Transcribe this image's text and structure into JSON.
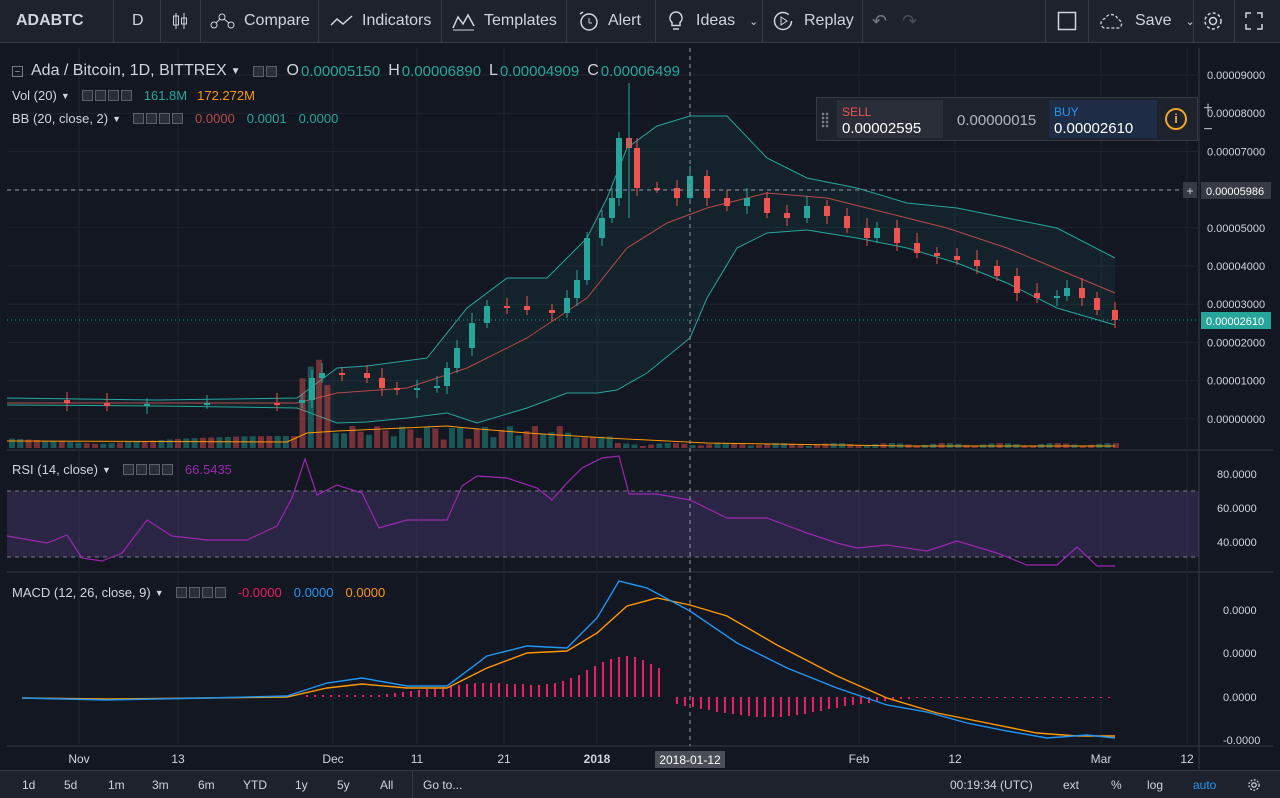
{
  "toolbar": {
    "symbol": "ADABTC",
    "interval": "D",
    "compare": "Compare",
    "indicators": "Indicators",
    "templates": "Templates",
    "alert": "Alert",
    "ideas": "Ideas",
    "replay": "Replay",
    "save": "Save"
  },
  "legend": {
    "title": "Ada / Bitcoin, 1D, BITTREX",
    "o_label": "O",
    "o_value": "0.00005150",
    "h_label": "H",
    "h_value": "0.00006890",
    "l_label": "L",
    "l_value": "0.00004909",
    "c_label": "C",
    "c_value": "0.00006499",
    "vol_name": "Vol (20)",
    "vol_v1": "161.8M",
    "vol_v2": "172.272M",
    "bb_name": "BB (20, close, 2)",
    "bb_v1": "0.0000",
    "bb_v2": "0.0001",
    "bb_v3": "0.0000",
    "rsi_name": "RSI (14, close)",
    "rsi_value": "66.5435",
    "macd_name": "MACD (12, 26, close, 9)",
    "macd_v1": "-0.0000",
    "macd_v2": "0.0000",
    "macd_v3": "0.0000"
  },
  "trade": {
    "sell_label": "SELL",
    "sell_price": "0.00002595",
    "spread": "0.00000015",
    "buy_label": "BUY",
    "buy_price": "0.00002610"
  },
  "price_axis": [
    "0.00009000",
    "0.00008000",
    "0.00007000",
    "0.00006000",
    "0.00005000",
    "0.00004000",
    "0.00003000",
    "0.00002000",
    "0.00001000",
    "0.00000000"
  ],
  "crosshair_price": "0.00005986",
  "last_price": "0.00002610",
  "rsi_axis": [
    "80.0000",
    "60.0000",
    "40.0000"
  ],
  "macd_axis": [
    "0.0000",
    "0.0000",
    "0.0000",
    "-0.0000"
  ],
  "time_axis": [
    "Nov",
    "13",
    "Dec",
    "11",
    "21",
    "2018",
    "Feb",
    "12",
    "Mar",
    "12"
  ],
  "crosshair_time": "2018-01-12",
  "bottom": {
    "ranges": [
      "1d",
      "5d",
      "1m",
      "3m",
      "6m",
      "YTD",
      "1y",
      "5y",
      "All"
    ],
    "goto": "Go to...",
    "clock": "00:19:34 (UTC)",
    "ext": "ext",
    "pct": "%",
    "log": "log",
    "auto": "auto"
  },
  "colors": {
    "up": "#26a69a",
    "down": "#ef5350",
    "bb": "#26a69a",
    "basis": "#b84a4a",
    "rsi": "#9c27b0",
    "macd": "#2196f3",
    "signal": "#ff9800",
    "hist": "#e91e63",
    "accent": "#2196f3"
  }
}
